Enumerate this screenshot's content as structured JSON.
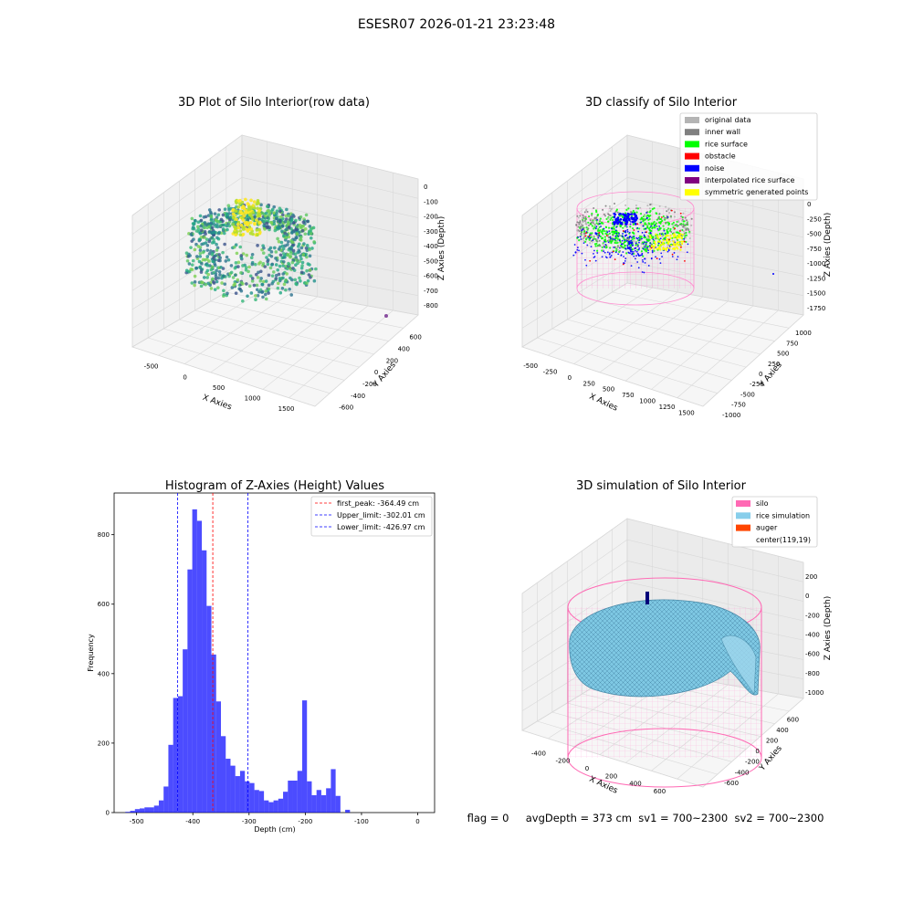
{
  "figure": {
    "suptitle": "ESESR07 2026-01-21 23:23:48",
    "footer": "flag = 0     avgDepth = 373 cm  sv1 = 700~2300  sv2 = 700~2300"
  },
  "panels": {
    "raw": {
      "title": "3D Plot of Silo Interior(row data)",
      "xlabel": "X Axies",
      "ylabel": "Y Axies",
      "zlabel": "Z Axies (Depth)",
      "xticks": [
        "-500",
        "0",
        "500",
        "1000",
        "1500"
      ],
      "yticks": [
        "-600",
        "-400",
        "-200",
        "0",
        "200",
        "400",
        "600"
      ],
      "zticks": [
        "-800",
        "-700",
        "-600",
        "-500",
        "-400",
        "-300",
        "-200",
        "-100",
        "0"
      ]
    },
    "classify": {
      "title": "3D classify of Silo Interior",
      "xlabel": "X Axies",
      "ylabel": "Y Axies",
      "zlabel": "Z Axies (Depth)",
      "xticks": [
        "-500",
        "-250",
        "0",
        "250",
        "500",
        "750",
        "1000",
        "1250",
        "1500"
      ],
      "yticks": [
        "-1000",
        "-750",
        "-500",
        "-250",
        "0",
        "250",
        "500",
        "750",
        "1000"
      ],
      "zticks": [
        "-1750",
        "-1500",
        "-1250",
        "-1000",
        "-750",
        "-500",
        "-250",
        "0"
      ],
      "legend": [
        {
          "label": "original data",
          "color": "#b4b4b4"
        },
        {
          "label": "inner wall",
          "color": "#808080"
        },
        {
          "label": "rice surface",
          "color": "#00ff00"
        },
        {
          "label": "obstacle",
          "color": "#ff0000"
        },
        {
          "label": "noise",
          "color": "#0000ff"
        },
        {
          "label": "interpolated rice surface",
          "color": "#800080"
        },
        {
          "label": "symmetric generated points",
          "color": "#ffff00"
        }
      ]
    },
    "simulation": {
      "title": "3D simulation of Silo Interior",
      "xlabel": "X Axies",
      "ylabel": "Y Axies",
      "zlabel": "Z Axies (Depth)",
      "xticks": [
        "-400",
        "-200",
        "0",
        "200",
        "400",
        "600"
      ],
      "yticks": [
        "-600",
        "-400",
        "-200",
        "0",
        "200",
        "400",
        "600"
      ],
      "zticks": [
        "-1000",
        "-800",
        "-600",
        "-400",
        "-200",
        "0",
        "200"
      ],
      "legend": [
        {
          "label": "silo",
          "color": "#ff69b4"
        },
        {
          "label": "rice simulation",
          "color": "#87ceeb"
        },
        {
          "label": "auger",
          "color": "#ff4500"
        },
        {
          "label": "center(119,19)",
          "color": "none"
        }
      ]
    }
  },
  "chart_data": [
    {
      "type": "bar",
      "title": "Histogram of Z-Axies (Height) Values",
      "xlabel": "Depth (cm)",
      "ylabel": "Frequency",
      "xlim": [
        -540,
        30
      ],
      "ylim": [
        0,
        920
      ],
      "xticks": [
        -500,
        -400,
        -300,
        -200,
        -100,
        0
      ],
      "yticks": [
        0,
        200,
        400,
        600,
        800
      ],
      "bar_color": "#0000ff",
      "bins": {
        "start": -520,
        "width": 8.5,
        "counts": [
          2,
          5,
          10,
          12,
          15,
          15,
          20,
          35,
          75,
          195,
          330,
          335,
          470,
          700,
          873,
          840,
          755,
          595,
          455,
          320,
          220,
          155,
          135,
          105,
          120,
          90,
          85,
          65,
          62,
          35,
          30,
          35,
          40,
          60,
          92,
          92,
          120,
          323,
          90,
          50,
          65,
          50,
          70,
          125,
          48,
          0,
          8
        ]
      },
      "vlines": [
        {
          "label": "first_peak: -364.49 cm",
          "x": -364.49,
          "color": "#ff0000"
        },
        {
          "label": "Upper_limit: -302.01 cm",
          "x": -302.01,
          "color": "#0000ff"
        },
        {
          "label": "Lower_limit: -426.97 cm",
          "x": -426.97,
          "color": "#0000ff"
        }
      ],
      "legend_position": "top-right"
    }
  ]
}
